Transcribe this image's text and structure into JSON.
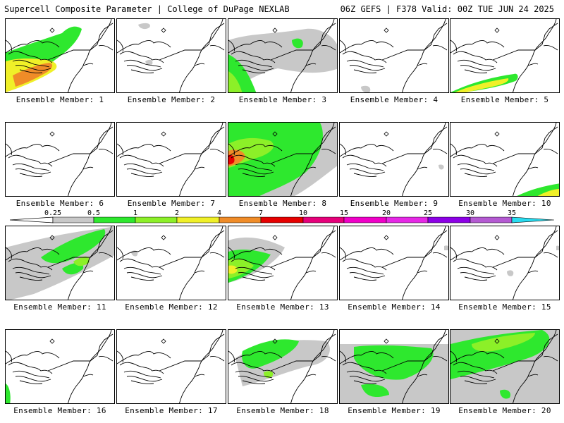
{
  "header": {
    "left_title": "Supercell Composite Parameter | College of DuPage NEXLAB",
    "right_title": "06Z GEFS | F378 Valid: 00Z TUE JUN 24 2025"
  },
  "panels": [
    {
      "label": "Ensemble Member: 1"
    },
    {
      "label": "Ensemble Member: 2"
    },
    {
      "label": "Ensemble Member: 3"
    },
    {
      "label": "Ensemble Member: 4"
    },
    {
      "label": "Ensemble Member: 5"
    },
    {
      "label": "Ensemble Member: 6"
    },
    {
      "label": "Ensemble Member: 7"
    },
    {
      "label": "Ensemble Member: 8"
    },
    {
      "label": "Ensemble Member: 9"
    },
    {
      "label": "Ensemble Member: 10"
    },
    {
      "label": "Ensemble Member: 11"
    },
    {
      "label": "Ensemble Member: 12"
    },
    {
      "label": "Ensemble Member: 13"
    },
    {
      "label": "Ensemble Member: 14"
    },
    {
      "label": "Ensemble Member: 15"
    },
    {
      "label": "Ensemble Member: 16"
    },
    {
      "label": "Ensemble Member: 17"
    },
    {
      "label": "Ensemble Member: 18"
    },
    {
      "label": "Ensemble Member: 19"
    },
    {
      "label": "Ensemble Member: 20"
    }
  ],
  "colorbar": {
    "ticks": [
      "0.25",
      "0.5",
      "1",
      "2",
      "4",
      "7",
      "10",
      "15",
      "20",
      "25",
      "30",
      "35"
    ],
    "colors": [
      "#c8c8c8",
      "#2ee82e",
      "#8cf028",
      "#f0f028",
      "#f08c28",
      "#e60000",
      "#e6007a",
      "#f000c8",
      "#e628e6",
      "#8c00e6",
      "#b45ad2",
      "#28dcf0"
    ]
  }
}
